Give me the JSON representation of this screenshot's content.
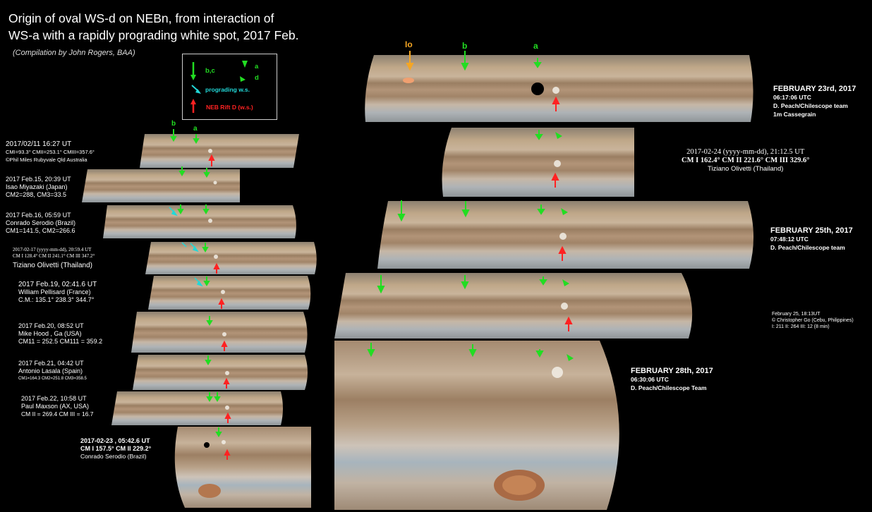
{
  "title_line1": "Origin of oval WS-d on NEBn, from interaction of",
  "title_line2": "WS-a with a rapidly prograding white spot, 2017 Feb.",
  "credit": "(Compilation by John Rogers, BAA)",
  "legend": {
    "bc": "b,c",
    "a": "a",
    "d": "d",
    "prograding": "prograding w.s.",
    "rift": "NEB Rift D (w.s.)"
  },
  "colors": {
    "green": "#22dd22",
    "cyan": "#22d8d8",
    "red": "#ff2222",
    "orange": "#f5a623"
  },
  "left_strips": [
    {
      "l1": "2017/02/11   16:27 UT",
      "l2": "CMI=93.3° CMII=253.1° CMIII=357.6°",
      "l3": "©Phil Miles Rubyvale Qld Australia",
      "top_labels": [
        "b",
        "a"
      ]
    },
    {
      "l1": "2017 Feb.15, 20:39 UT",
      "l2": "Isao Miyazaki (Japan)",
      "l3": "CM2=288, CM3=33.5"
    },
    {
      "l1": "2017 Feb.16, 05:59 UT",
      "l2": "Conrado Serodio (Brazil)",
      "l3": "CM1=141.5, CM2=266.6"
    },
    {
      "l1": "2017-02-17 (yyyy-mm-dd), 20:59.4 UT",
      "l2": "CM I 128.4° CM II 241.1° CM III 347.2°",
      "l3": "Tiziano Olivetti (Thailand)"
    },
    {
      "l1": "2017 Feb.19, 02:41.6 UT",
      "l2": "William Pellisard (France)",
      "l3": "C.M.:   135.1°   238.3°   344.7°"
    },
    {
      "l1": "2017 Feb.20, 08:52 UT",
      "l2": "Mike Hood , Ga    (USA)",
      "l3": "CM11 = 252.5    CM111 = 359.2"
    },
    {
      "l1": "2017 Feb.21, 04:42 UT",
      "l2": "Antonio Lasala (Spain)",
      "l3": "CM1=164.3 CM2=251.8 CM3=358.5"
    },
    {
      "l1": "2017 Feb.22, 10:58 UT",
      "l2": "Paul Maxson (AX, USA)",
      "l3": "CM II = 269.4 CM III = 16.7"
    },
    {
      "l1": "2017-02-23 , 05:42.6 UT",
      "l2": "CM I 157.5° CM II 229.2°",
      "l3": "Conrado Serodio (Brazil)"
    }
  ],
  "right_labels": {
    "io": "Io",
    "b": "b",
    "a": "a"
  },
  "right_captions": [
    {
      "h": "FEBRUARY 23rd, 2017",
      "l2": "06:17:06 UTC",
      "l3": "D. Peach/Chilescope team",
      "l4": "1m Cassegrain"
    },
    {
      "h": "2017-02-24 (yyyy-mm-dd), 21:12.5 UT",
      "l2": "CM I 162.4° CM II 221.6° CM III 329.6°",
      "l3": "Tiziano Olivetti (Thailand)"
    },
    {
      "h": "FEBRUARY 25th, 2017",
      "l2": "07:48:12 UTC",
      "l3": "D. Peach/Chilescope team"
    },
    {
      "h": "February 25, 18:13UT",
      "l2": "© Christopher Go  (Cebu, Philippines)",
      "l3": "I: 211  II: 264  III: 12  (8 min)"
    },
    {
      "h": "FEBRUARY 28th, 2017",
      "l2": "06:30:06 UTC",
      "l3": "D. Peach/Chilescope Team"
    }
  ]
}
